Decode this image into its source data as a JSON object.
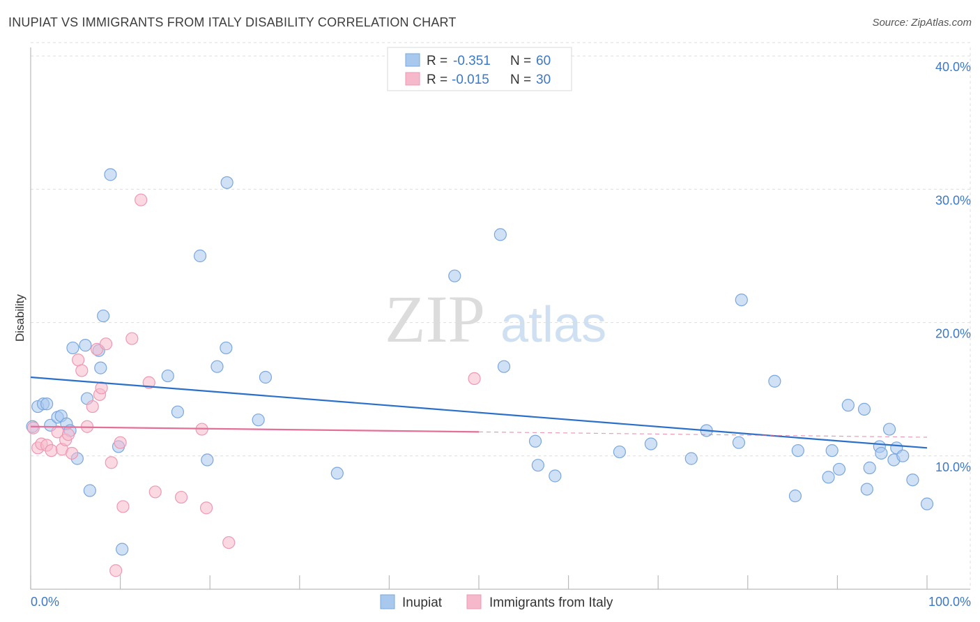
{
  "title": "INUPIAT VS IMMIGRANTS FROM ITALY DISABILITY CORRELATION CHART",
  "source": "Source: ZipAtlas.com",
  "watermark": {
    "zip": "ZIP",
    "atlas": "atlas"
  },
  "colors": {
    "blue_fill": "#a9c8ee",
    "blue_stroke": "#7aa7dd",
    "blue_line": "#2a6fc9",
    "pink_fill": "#f6b9cc",
    "pink_stroke": "#ef98b2",
    "pink_line": "#e46f98",
    "axis_text": "#3b78c9",
    "grid": "#dddddd"
  },
  "legend_top": {
    "rows": [
      {
        "r_label": "R = ",
        "r_value": "-0.351",
        "n_label": "N = ",
        "n_value": "60",
        "color": "blue"
      },
      {
        "r_label": "R = ",
        "r_value": "-0.015",
        "n_label": "N = ",
        "n_value": "30",
        "color": "pink"
      }
    ]
  },
  "chart_data": {
    "type": "scatter",
    "title": "INUPIAT VS IMMIGRANTS FROM ITALY DISABILITY CORRELATION CHART",
    "xlabel": "",
    "ylabel": "Disability",
    "xlim": [
      0,
      100
    ],
    "ylim": [
      0,
      41.5
    ],
    "x_tick_labels": [
      "0.0%",
      "100.0%"
    ],
    "y_ticks": [
      10,
      20,
      30,
      40
    ],
    "y_tick_labels": [
      "10.0%",
      "20.0%",
      "30.0%",
      "40.0%"
    ],
    "grid": true,
    "legend_position": "bottom-center",
    "series": [
      {
        "name": "Inupiat",
        "color": "blue",
        "trend": {
          "x": [
            0,
            100
          ],
          "y": [
            15.9,
            10.6
          ]
        },
        "points": [
          [
            0.2,
            12.2
          ],
          [
            0.8,
            13.7
          ],
          [
            1.4,
            13.9
          ],
          [
            1.8,
            13.9
          ],
          [
            2.2,
            12.3
          ],
          [
            3.0,
            12.9
          ],
          [
            3.4,
            13.0
          ],
          [
            4.0,
            12.4
          ],
          [
            4.4,
            11.9
          ],
          [
            5.2,
            9.8
          ],
          [
            4.7,
            18.1
          ],
          [
            6.1,
            18.3
          ],
          [
            6.3,
            14.3
          ],
          [
            6.6,
            7.4
          ],
          [
            7.6,
            17.9
          ],
          [
            7.8,
            16.6
          ],
          [
            8.1,
            20.5
          ],
          [
            8.9,
            31.1
          ],
          [
            9.8,
            10.7
          ],
          [
            10.2,
            3.0
          ],
          [
            15.3,
            16.0
          ],
          [
            16.4,
            13.3
          ],
          [
            18.9,
            25.0
          ],
          [
            19.7,
            9.7
          ],
          [
            20.8,
            16.7
          ],
          [
            21.8,
            18.1
          ],
          [
            21.9,
            30.5
          ],
          [
            25.4,
            12.7
          ],
          [
            26.2,
            15.9
          ],
          [
            34.2,
            8.7
          ],
          [
            47.3,
            23.5
          ],
          [
            52.4,
            26.6
          ],
          [
            52.8,
            16.7
          ],
          [
            56.3,
            11.1
          ],
          [
            56.6,
            9.3
          ],
          [
            58.5,
            8.5
          ],
          [
            65.7,
            10.3
          ],
          [
            69.2,
            10.9
          ],
          [
            73.7,
            9.8
          ],
          [
            75.4,
            11.9
          ],
          [
            79.0,
            11.0
          ],
          [
            79.3,
            21.7
          ],
          [
            83.0,
            15.6
          ],
          [
            85.3,
            7.0
          ],
          [
            85.6,
            10.4
          ],
          [
            89.0,
            8.4
          ],
          [
            89.4,
            10.4
          ],
          [
            90.2,
            9.0
          ],
          [
            91.2,
            13.8
          ],
          [
            93.0,
            13.5
          ],
          [
            93.3,
            7.5
          ],
          [
            93.6,
            9.1
          ],
          [
            94.7,
            10.7
          ],
          [
            94.9,
            10.2
          ],
          [
            95.8,
            12.0
          ],
          [
            96.3,
            9.7
          ],
          [
            96.6,
            10.6
          ],
          [
            97.3,
            10.0
          ],
          [
            98.4,
            8.2
          ],
          [
            100.0,
            6.4
          ]
        ]
      },
      {
        "name": "Immigrants from Italy",
        "color": "pink",
        "trend": {
          "x": [
            0,
            50
          ],
          "y": [
            12.2,
            11.8
          ]
        },
        "trend_dashed": {
          "x": [
            50,
            100
          ],
          "y": [
            11.8,
            11.4
          ]
        },
        "points": [
          [
            0.3,
            12.1
          ],
          [
            0.8,
            10.6
          ],
          [
            1.2,
            10.9
          ],
          [
            1.8,
            10.8
          ],
          [
            2.3,
            10.4
          ],
          [
            3.0,
            11.8
          ],
          [
            3.5,
            10.5
          ],
          [
            3.9,
            11.2
          ],
          [
            4.2,
            11.6
          ],
          [
            4.6,
            10.2
          ],
          [
            5.3,
            17.2
          ],
          [
            5.7,
            16.4
          ],
          [
            6.3,
            12.2
          ],
          [
            6.9,
            13.7
          ],
          [
            7.4,
            18.0
          ],
          [
            7.7,
            14.6
          ],
          [
            7.9,
            15.1
          ],
          [
            8.4,
            18.4
          ],
          [
            9.0,
            9.5
          ],
          [
            9.5,
            1.4
          ],
          [
            10.0,
            11.0
          ],
          [
            10.3,
            6.2
          ],
          [
            11.3,
            18.8
          ],
          [
            12.3,
            29.2
          ],
          [
            13.2,
            15.5
          ],
          [
            13.9,
            7.3
          ],
          [
            16.8,
            6.9
          ],
          [
            19.1,
            12.0
          ],
          [
            19.6,
            6.1
          ],
          [
            22.1,
            3.5
          ]
        ],
        "points_extra": [
          [
            49.5,
            15.8
          ]
        ]
      }
    ]
  },
  "legend_bottom": {
    "items": [
      {
        "label": "Inupiat",
        "color": "blue"
      },
      {
        "label": "Immigrants from Italy",
        "color": "pink"
      }
    ]
  }
}
